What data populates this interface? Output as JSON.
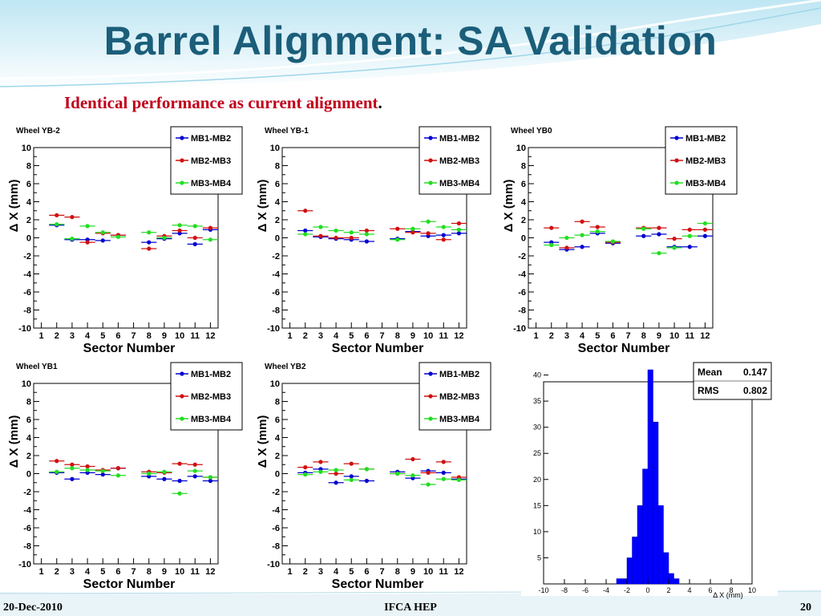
{
  "slide": {
    "title": "Barrel Alignment: SA Validation",
    "subtitle": "Identical performance as current alignment",
    "subtitle_end": ".",
    "footer_left": "20-Dec-2010",
    "footer_center": "IFCA HEP",
    "footer_right": "20"
  },
  "colors": {
    "title": "#1b5e7a",
    "subtitle": "#c0001a",
    "MB1-MB2": "#0000d0",
    "MB2-MB3": "#d01010",
    "MB3-MB4": "#22dd22",
    "histogram": "#0000ff"
  },
  "chart_data": [
    {
      "type": "scatter",
      "title": "Wheel YB-2",
      "xlabel": "Sector Number",
      "ylabel": "Δ X (mm)",
      "ylim": [
        -10,
        10
      ],
      "x": [
        1,
        2,
        3,
        4,
        5,
        6,
        7,
        8,
        9,
        10,
        11,
        12
      ],
      "legend": "top-right",
      "series": [
        {
          "name": "MB1-MB2",
          "values": [
            null,
            1.4,
            -0.2,
            -0.2,
            -0.3,
            0.3,
            null,
            -0.5,
            -0.1,
            0.5,
            -0.7,
            0.9
          ]
        },
        {
          "name": "MB2-MB3",
          "values": [
            null,
            2.5,
            2.3,
            -0.5,
            0.5,
            0.3,
            null,
            -1.2,
            0.2,
            0.8,
            0.0,
            1.1
          ]
        },
        {
          "name": "MB3-MB4",
          "values": [
            null,
            1.5,
            -0.1,
            1.3,
            0.6,
            0.1,
            null,
            0.6,
            0.0,
            1.4,
            1.3,
            -0.2
          ]
        }
      ]
    },
    {
      "type": "scatter",
      "title": "Wheel YB-1",
      "xlabel": "Sector Number",
      "ylabel": "Δ X (mm)",
      "ylim": [
        -10,
        10
      ],
      "x": [
        1,
        2,
        3,
        4,
        5,
        6,
        7,
        8,
        9,
        10,
        11,
        12
      ],
      "legend": "top-right",
      "series": [
        {
          "name": "MB1-MB2",
          "values": [
            null,
            0.8,
            0.1,
            -0.1,
            -0.2,
            -0.4,
            null,
            -0.1,
            0.7,
            0.2,
            0.3,
            0.5
          ]
        },
        {
          "name": "MB2-MB3",
          "values": [
            null,
            3.0,
            0.2,
            0.0,
            0.0,
            0.8,
            null,
            1.0,
            0.6,
            0.5,
            -0.2,
            1.6
          ]
        },
        {
          "name": "MB3-MB4",
          "values": [
            null,
            0.4,
            1.2,
            0.8,
            0.6,
            0.4,
            null,
            -0.2,
            1.0,
            1.8,
            1.2,
            0.9
          ]
        }
      ]
    },
    {
      "type": "scatter",
      "title": "Wheel YB0",
      "xlabel": "Sector Number",
      "ylabel": "Δ X (mm)",
      "ylim": [
        -10,
        10
      ],
      "x": [
        1,
        2,
        3,
        4,
        5,
        6,
        7,
        8,
        9,
        10,
        11,
        12
      ],
      "legend": "top-right",
      "series": [
        {
          "name": "MB1-MB2",
          "values": [
            null,
            -0.5,
            -1.3,
            -1.0,
            0.5,
            -0.6,
            null,
            0.2,
            0.4,
            -1.0,
            -1.0,
            0.2
          ]
        },
        {
          "name": "MB2-MB3",
          "values": [
            null,
            1.1,
            -1.1,
            1.8,
            1.2,
            -0.5,
            null,
            1.1,
            1.1,
            -0.1,
            0.9,
            0.9
          ]
        },
        {
          "name": "MB3-MB4",
          "values": [
            null,
            -0.8,
            0.0,
            0.3,
            0.7,
            -0.4,
            null,
            1.0,
            -1.7,
            -1.1,
            0.2,
            1.6
          ]
        }
      ]
    },
    {
      "type": "scatter",
      "title": "Wheel YB1",
      "xlabel": "Sector Number",
      "ylabel": "Δ X (mm)",
      "ylim": [
        -10,
        10
      ],
      "x": [
        1,
        2,
        3,
        4,
        5,
        6,
        7,
        8,
        9,
        10,
        11,
        12
      ],
      "legend": "top-right",
      "series": [
        {
          "name": "MB1-MB2",
          "values": [
            null,
            0.1,
            -0.6,
            0.1,
            -0.1,
            0.6,
            null,
            -0.3,
            -0.6,
            -0.8,
            -0.3,
            -0.8
          ]
        },
        {
          "name": "MB2-MB3",
          "values": [
            null,
            1.4,
            1.0,
            0.8,
            0.4,
            0.6,
            null,
            0.2,
            0.1,
            1.1,
            1.0,
            -0.4
          ]
        },
        {
          "name": "MB3-MB4",
          "values": [
            null,
            0.2,
            0.6,
            0.4,
            0.3,
            -0.2,
            null,
            0.0,
            0.2,
            -2.2,
            0.3,
            -0.4
          ]
        }
      ]
    },
    {
      "type": "scatter",
      "title": "Wheel YB2",
      "xlabel": "Sector Number",
      "ylabel": "Δ X (mm)",
      "ylim": [
        -10,
        10
      ],
      "x": [
        1,
        2,
        3,
        4,
        5,
        6,
        7,
        8,
        9,
        10,
        11,
        12
      ],
      "legend": "top-right",
      "series": [
        {
          "name": "MB1-MB2",
          "values": [
            null,
            0.1,
            0.5,
            -1.0,
            -0.3,
            -0.8,
            null,
            0.2,
            -0.5,
            0.3,
            0.1,
            -0.6
          ]
        },
        {
          "name": "MB2-MB3",
          "values": [
            null,
            0.7,
            1.3,
            0.0,
            1.1,
            0.5,
            null,
            0.0,
            1.6,
            0.1,
            1.3,
            -0.4
          ]
        },
        {
          "name": "MB3-MB4",
          "values": [
            null,
            -0.1,
            0.2,
            0.4,
            -0.7,
            0.5,
            null,
            0.0,
            -0.2,
            -1.2,
            -0.6,
            -0.7
          ]
        }
      ]
    },
    {
      "type": "bar",
      "xlabel": "Δ X (mm)",
      "ylabel": "",
      "xlim": [
        -10,
        10
      ],
      "ylim": [
        0,
        43
      ],
      "bin_width": 0.5,
      "bins_left_edge": [
        -3,
        -2.5,
        -2,
        -1.5,
        -1,
        -0.5,
        0,
        0.5,
        1,
        1.5,
        2,
        2.5
      ],
      "values": [
        1,
        1,
        5,
        9,
        15,
        22,
        41,
        31,
        15,
        6,
        2,
        1
      ],
      "stats": {
        "Mean": "0.147",
        "RMS": "0.802"
      }
    }
  ]
}
